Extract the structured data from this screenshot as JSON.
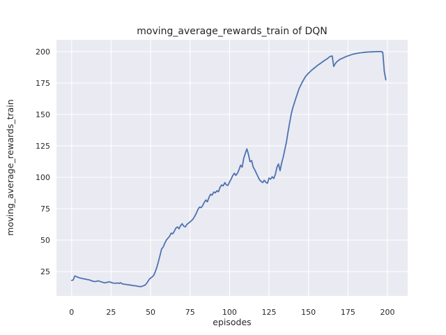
{
  "chart_data": {
    "type": "line",
    "title": "moving_average_rewards_train of DQN",
    "xlabel": "episodes",
    "ylabel": "moving_average_rewards_train",
    "x_ticks": [
      0,
      25,
      50,
      75,
      100,
      125,
      150,
      175,
      200
    ],
    "y_ticks": [
      25,
      50,
      75,
      100,
      125,
      150,
      175,
      200
    ],
    "xlim": [
      -9.6,
      212.8
    ],
    "ylim": [
      5.6,
      209.4
    ],
    "grid": true,
    "legend": "none",
    "colors": {
      "plot_background": "#eaeaf2",
      "gridline": "#ffffff",
      "line": "#4c72b0",
      "text": "#262626",
      "figure_background": "#ffffff"
    },
    "series": [
      {
        "name": "moving_average_rewards_train",
        "points": [
          [
            0,
            18
          ],
          [
            1,
            18.2
          ],
          [
            2,
            21.5
          ],
          [
            3,
            21
          ],
          [
            4,
            20.4
          ],
          [
            5,
            20
          ],
          [
            6,
            19.7
          ],
          [
            7,
            19.4
          ],
          [
            8,
            19.1
          ],
          [
            9,
            18.9
          ],
          [
            10,
            18.6
          ],
          [
            11,
            18.4
          ],
          [
            12,
            18
          ],
          [
            13,
            17.5
          ],
          [
            14,
            17.2
          ],
          [
            15,
            17
          ],
          [
            16,
            17.3
          ],
          [
            17,
            17.6
          ],
          [
            18,
            17.1
          ],
          [
            19,
            16.7
          ],
          [
            20,
            16.3
          ],
          [
            21,
            16
          ],
          [
            22,
            16.3
          ],
          [
            23,
            16.6
          ],
          [
            24,
            16.9
          ],
          [
            25,
            16.4
          ],
          [
            26,
            15.9
          ],
          [
            27,
            15.8
          ],
          [
            28,
            15.6
          ],
          [
            29,
            16
          ],
          [
            30,
            15.5
          ],
          [
            31,
            16.1
          ],
          [
            32,
            15.3
          ],
          [
            33,
            15
          ],
          [
            34,
            14.8
          ],
          [
            35,
            14.6
          ],
          [
            36,
            14.4
          ],
          [
            37,
            14.3
          ],
          [
            38,
            14
          ],
          [
            39,
            13.8
          ],
          [
            40,
            13.7
          ],
          [
            41,
            13.5
          ],
          [
            42,
            13.2
          ],
          [
            43,
            13.1
          ],
          [
            44,
            13
          ],
          [
            45,
            13.5
          ],
          [
            46,
            13.9
          ],
          [
            47,
            14.8
          ],
          [
            48,
            16.5
          ],
          [
            49,
            18.5
          ],
          [
            50,
            19.8
          ],
          [
            51,
            20.7
          ],
          [
            52,
            22
          ],
          [
            53,
            25
          ],
          [
            54,
            28.5
          ],
          [
            55,
            33
          ],
          [
            56,
            38
          ],
          [
            57,
            43
          ],
          [
            58,
            44.5
          ],
          [
            59,
            47.5
          ],
          [
            60,
            50
          ],
          [
            61,
            51.5
          ],
          [
            62,
            53
          ],
          [
            63,
            55.5
          ],
          [
            64,
            55
          ],
          [
            65,
            57
          ],
          [
            66,
            59.5
          ],
          [
            67,
            60.5
          ],
          [
            68,
            59
          ],
          [
            69,
            61.5
          ],
          [
            70,
            63
          ],
          [
            71,
            61
          ],
          [
            72,
            60.5
          ],
          [
            73,
            62.5
          ],
          [
            74,
            63.5
          ],
          [
            75,
            64.5
          ],
          [
            76,
            65.5
          ],
          [
            77,
            67
          ],
          [
            78,
            69
          ],
          [
            79,
            71.5
          ],
          [
            80,
            74.5
          ],
          [
            81,
            76.3
          ],
          [
            82,
            75.8
          ],
          [
            83,
            77.5
          ],
          [
            84,
            80
          ],
          [
            85,
            81.9
          ],
          [
            86,
            80.5
          ],
          [
            87,
            84
          ],
          [
            88,
            86.5
          ],
          [
            89,
            85.8
          ],
          [
            90,
            88.3
          ],
          [
            91,
            87.6
          ],
          [
            92,
            89.3
          ],
          [
            93,
            88.5
          ],
          [
            94,
            92
          ],
          [
            95,
            93.9
          ],
          [
            96,
            93.2
          ],
          [
            97,
            95.7
          ],
          [
            98,
            94
          ],
          [
            99,
            93.5
          ],
          [
            100,
            96.3
          ],
          [
            101,
            98.5
          ],
          [
            102,
            101.3
          ],
          [
            103,
            103.2
          ],
          [
            104,
            101.5
          ],
          [
            105,
            103.2
          ],
          [
            106,
            106
          ],
          [
            107,
            109.6
          ],
          [
            108,
            108
          ],
          [
            109,
            115.2
          ],
          [
            110,
            119
          ],
          [
            111,
            122.6
          ],
          [
            112,
            118
          ],
          [
            113,
            112.4
          ],
          [
            114,
            113.3
          ],
          [
            115,
            108
          ],
          [
            116,
            106
          ],
          [
            117,
            103.2
          ],
          [
            118,
            100.5
          ],
          [
            119,
            98
          ],
          [
            120,
            96.7
          ],
          [
            121,
            95.8
          ],
          [
            122,
            97.6
          ],
          [
            123,
            96
          ],
          [
            124,
            95.2
          ],
          [
            125,
            99.4
          ],
          [
            126,
            98.5
          ],
          [
            127,
            100.4
          ],
          [
            128,
            99
          ],
          [
            129,
            102.2
          ],
          [
            130,
            108
          ],
          [
            131,
            110.6
          ],
          [
            132,
            105.2
          ],
          [
            133,
            111.5
          ],
          [
            134,
            116
          ],
          [
            135,
            122
          ],
          [
            136,
            128
          ],
          [
            137,
            135.6
          ],
          [
            138,
            143
          ],
          [
            139,
            150
          ],
          [
            140,
            155
          ],
          [
            142,
            163
          ],
          [
            144,
            170.5
          ],
          [
            146,
            175.5
          ],
          [
            148,
            180
          ],
          [
            150,
            182.8
          ],
          [
            152,
            185.2
          ],
          [
            154,
            187.2
          ],
          [
            156,
            189.3
          ],
          [
            158,
            191
          ],
          [
            160,
            192.8
          ],
          [
            162,
            194.4
          ],
          [
            163,
            195.5
          ],
          [
            164,
            196.3
          ],
          [
            165,
            196.5
          ],
          [
            166,
            188.2
          ],
          [
            167,
            190.5
          ],
          [
            168,
            192
          ],
          [
            170,
            193.9
          ],
          [
            172,
            195
          ],
          [
            174,
            196.2
          ],
          [
            176,
            197
          ],
          [
            178,
            197.9
          ],
          [
            180,
            198.4
          ],
          [
            182,
            198.9
          ],
          [
            184,
            199.2
          ],
          [
            186,
            199.5
          ],
          [
            188,
            199.7
          ],
          [
            190,
            199.8
          ],
          [
            192,
            199.9
          ],
          [
            194,
            200
          ],
          [
            196,
            200
          ],
          [
            197,
            199.5
          ],
          [
            198,
            184
          ],
          [
            199,
            177.5
          ]
        ]
      }
    ]
  }
}
